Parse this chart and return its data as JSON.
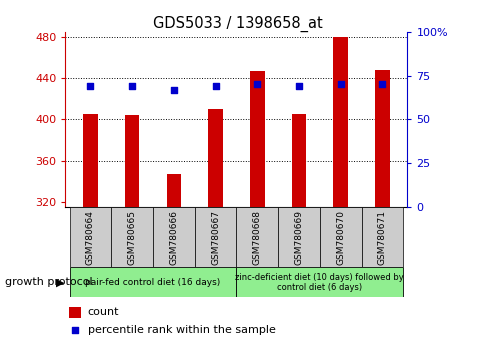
{
  "title": "GDS5033 / 1398658_at",
  "samples": [
    "GSM780664",
    "GSM780665",
    "GSM780666",
    "GSM780667",
    "GSM780668",
    "GSM780669",
    "GSM780670",
    "GSM780671"
  ],
  "count_values": [
    405,
    404,
    347,
    410,
    447,
    405,
    480,
    448
  ],
  "percentile_values": [
    69,
    69,
    67,
    69,
    70,
    69,
    70,
    70
  ],
  "ylim_left": [
    315,
    485
  ],
  "ylim_right": [
    0,
    100
  ],
  "yticks_left": [
    320,
    360,
    400,
    440,
    480
  ],
  "yticks_right": [
    0,
    25,
    50,
    75,
    100
  ],
  "bar_color": "#cc0000",
  "dot_color": "#0000cc",
  "bar_bottom": 315,
  "group1_label": "pair-fed control diet (16 days)",
  "group2_label": "zinc-deficient diet (10 days) followed by\ncontrol diet (6 days)",
  "group1_indices": [
    0,
    1,
    2,
    3
  ],
  "group2_indices": [
    4,
    5,
    6,
    7
  ],
  "group1_color": "#90ee90",
  "group2_color": "#90ee90",
  "xlabel_label": "growth protocol",
  "legend_count_label": "count",
  "legend_pct_label": "percentile rank within the sample",
  "title_color": "#000000",
  "left_axis_color": "#cc0000",
  "right_axis_color": "#0000cc",
  "tick_bg_color": "#cccccc",
  "bar_width": 0.35
}
